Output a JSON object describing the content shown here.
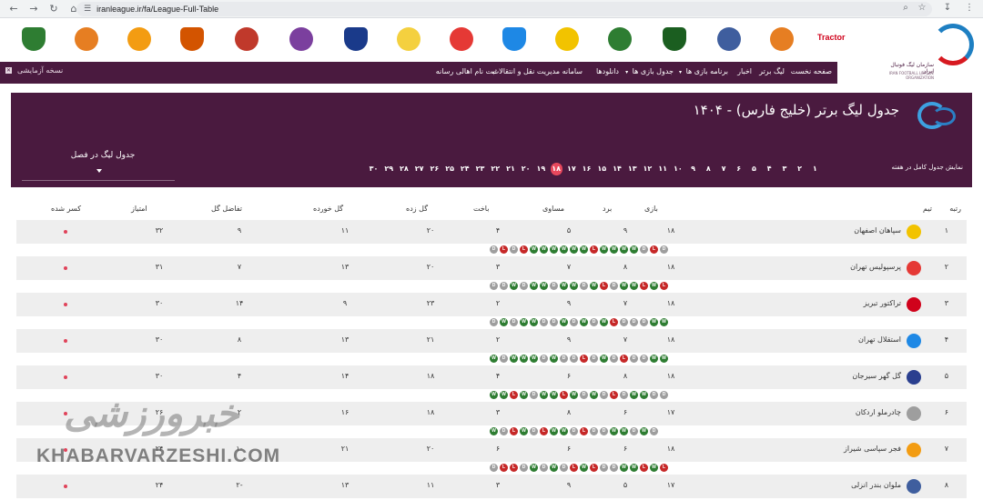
{
  "browser": {
    "url": "iranleague.ir/fa/League-Full-Table",
    "icons": [
      "back-icon",
      "forward-icon",
      "reload-icon",
      "home-icon",
      "tune-icon",
      "zoom-icon",
      "star-icon",
      "download-icon",
      "menu-icon"
    ]
  },
  "logos_row": {
    "clubs": [
      {
        "name": "tractor",
        "color": "#d0021b"
      },
      {
        "name": "foolad",
        "color": "#e67e22"
      },
      {
        "name": "malavan",
        "color": "#3f5e9e"
      },
      {
        "name": "aluminium",
        "color": "#1b5e20"
      },
      {
        "name": "zob-ahan",
        "color": "#2e7d32"
      },
      {
        "name": "sepahan",
        "color": "#f2c300"
      },
      {
        "name": "esteghlal",
        "color": "#1e88e5"
      },
      {
        "name": "persepolis",
        "color": "#e53935"
      },
      {
        "name": "naft",
        "color": "#f4d03f"
      },
      {
        "name": "esteghlal-khuzestan",
        "color": "#1a3a8a"
      },
      {
        "name": "havadar",
        "color": "#7b3f9e"
      },
      {
        "name": "kheybar",
        "color": "#c0392b"
      },
      {
        "name": "mes-rafsanjan",
        "color": "#d35400"
      },
      {
        "name": "chadormalou",
        "color": "#f39c12"
      },
      {
        "name": "gol-gohar",
        "color": "#e67e22"
      },
      {
        "name": "shams-azar",
        "color": "#2e7d32"
      }
    ],
    "tractor_text": "Tractor"
  },
  "league_logo": {
    "fa": "سازمان لیگ فوتبال ایران",
    "en": "IRAN FOOTBALL LEAGUE ORGANIZATION"
  },
  "nav": {
    "items": [
      "صفحه نخست",
      "لیگ برتر",
      "اخبار",
      "برنامه بازی ها",
      "جدول بازی ها",
      "دانلودها",
      "سامانه مدیریت نقل و انتقالات",
      "ثبت نام اهالی رسانه"
    ],
    "beta": "نسخه آزمایشی",
    "beta_icon": "close-icon"
  },
  "panel": {
    "title": "جدول لیگ برتر (خلیج فارس) - ۱۴۰۴",
    "weeks_label": "نمایش جدول کامل در هفته",
    "weeks": [
      "۱",
      "۲",
      "۳",
      "۴",
      "۵",
      "۶",
      "۷",
      "۸",
      "۹",
      "۱۰",
      "۱۱",
      "۱۲",
      "۱۳",
      "۱۴",
      "۱۵",
      "۱۶",
      "۱۷",
      "۱۸",
      "۱۹",
      "۲۰",
      "۲۱",
      "۲۲",
      "۲۳",
      "۲۴",
      "۲۵",
      "۲۶",
      "۲۷",
      "۲۸",
      "۲۹",
      "۳۰"
    ],
    "active_week": 17,
    "season_label": "جدول لیگ در فصل"
  },
  "table": {
    "headers": {
      "rank": "رتبه",
      "team": "تیم",
      "played": "بازی",
      "won": "برد",
      "drawn": "مساوی",
      "lost": "باخت",
      "gf": "گل زده",
      "ga": "گل خورده",
      "gd": "تفاضل گل",
      "pts": "امتیاز",
      "deduct": "کسر شده"
    },
    "rows": [
      {
        "rank": "۱",
        "team": "سپاهان اصفهان",
        "logo_color": "#f2c300",
        "played": "۱۸",
        "won": "۹",
        "drawn": "۵",
        "lost": "۴",
        "gf": "۲۰",
        "ga": "۱۱",
        "gd": "۹",
        "pts": "۳۲",
        "form": [
          "D",
          "L",
          "D",
          "W",
          "W",
          "W",
          "W",
          "L",
          "W",
          "W",
          "W",
          "W",
          "W",
          "W",
          "L",
          "D",
          "L",
          "D"
        ]
      },
      {
        "rank": "۲",
        "team": "پرسپولیس تهران",
        "logo_color": "#e53935",
        "played": "۱۸",
        "won": "۸",
        "drawn": "۷",
        "lost": "۳",
        "gf": "۲۰",
        "ga": "۱۳",
        "gd": "۷",
        "pts": "۳۱",
        "form": [
          "L",
          "W",
          "L",
          "W",
          "W",
          "D",
          "L",
          "W",
          "D",
          "W",
          "W",
          "D",
          "W",
          "W",
          "D",
          "W",
          "D",
          "D"
        ]
      },
      {
        "rank": "۳",
        "team": "تراکتور تبریز",
        "logo_color": "#d0021b",
        "played": "۱۸",
        "won": "۷",
        "drawn": "۹",
        "lost": "۲",
        "gf": "۲۳",
        "ga": "۹",
        "gd": "۱۴",
        "pts": "۳۰",
        "form": [
          "W",
          "W",
          "D",
          "D",
          "D",
          "L",
          "W",
          "D",
          "W",
          "D",
          "W",
          "D",
          "D",
          "W",
          "W",
          "D",
          "W",
          "D"
        ]
      },
      {
        "rank": "۴",
        "team": "استقلال تهران",
        "logo_color": "#1e88e5",
        "played": "۱۸",
        "won": "۷",
        "drawn": "۹",
        "lost": "۲",
        "gf": "۲۱",
        "ga": "۱۳",
        "gd": "۸",
        "pts": "۳۰",
        "form": [
          "W",
          "W",
          "D",
          "D",
          "L",
          "D",
          "W",
          "D",
          "L",
          "D",
          "D",
          "W",
          "D",
          "W",
          "W",
          "W",
          "D",
          "W"
        ]
      },
      {
        "rank": "۵",
        "team": "گل گهر سیرجان",
        "logo_color": "#2a3f8f",
        "played": "۱۸",
        "won": "۸",
        "drawn": "۶",
        "lost": "۴",
        "gf": "۱۸",
        "ga": "۱۴",
        "gd": "۴",
        "pts": "۳۰",
        "form": [
          "D",
          "D",
          "W",
          "W",
          "D",
          "L",
          "D",
          "W",
          "D",
          "W",
          "L",
          "W",
          "W",
          "D",
          "W",
          "L",
          "W",
          "W"
        ]
      },
      {
        "rank": "۶",
        "team": "چادرملو اردکان",
        "logo_color": "#9e9e9e",
        "played": "۱۷",
        "won": "۶",
        "drawn": "۸",
        "lost": "۳",
        "gf": "۱۸",
        "ga": "۱۶",
        "gd": "۲",
        "pts": "۲۶",
        "form": [
          "D",
          "W",
          "D",
          "W",
          "W",
          "D",
          "D",
          "L",
          "D",
          "W",
          "W",
          "L",
          "D",
          "W",
          "L",
          "D",
          "W"
        ]
      },
      {
        "rank": "۷",
        "team": "فجر سپاسی شیراز",
        "logo_color": "#f39c12",
        "played": "۱۸",
        "won": "۶",
        "drawn": "۶",
        "lost": "۶",
        "gf": "۲۰",
        "ga": "۲۱",
        "gd": "-۱",
        "pts": "۲۴",
        "form": [
          "L",
          "W",
          "L",
          "W",
          "W",
          "D",
          "D",
          "L",
          "W",
          "L",
          "D",
          "W",
          "D",
          "W",
          "D",
          "L",
          "L",
          "D"
        ]
      },
      {
        "rank": "۸",
        "team": "ملوان بندر انزلی",
        "logo_color": "#3f5e9e",
        "played": "۱۷",
        "won": "۵",
        "drawn": "۹",
        "lost": "۳",
        "gf": "۱۱",
        "ga": "۱۳",
        "gd": "-۲",
        "pts": "۲۴",
        "form": []
      }
    ]
  },
  "watermark": {
    "fa": "خبرورزشی",
    "en": "KHABARVARZESHI.COM"
  }
}
